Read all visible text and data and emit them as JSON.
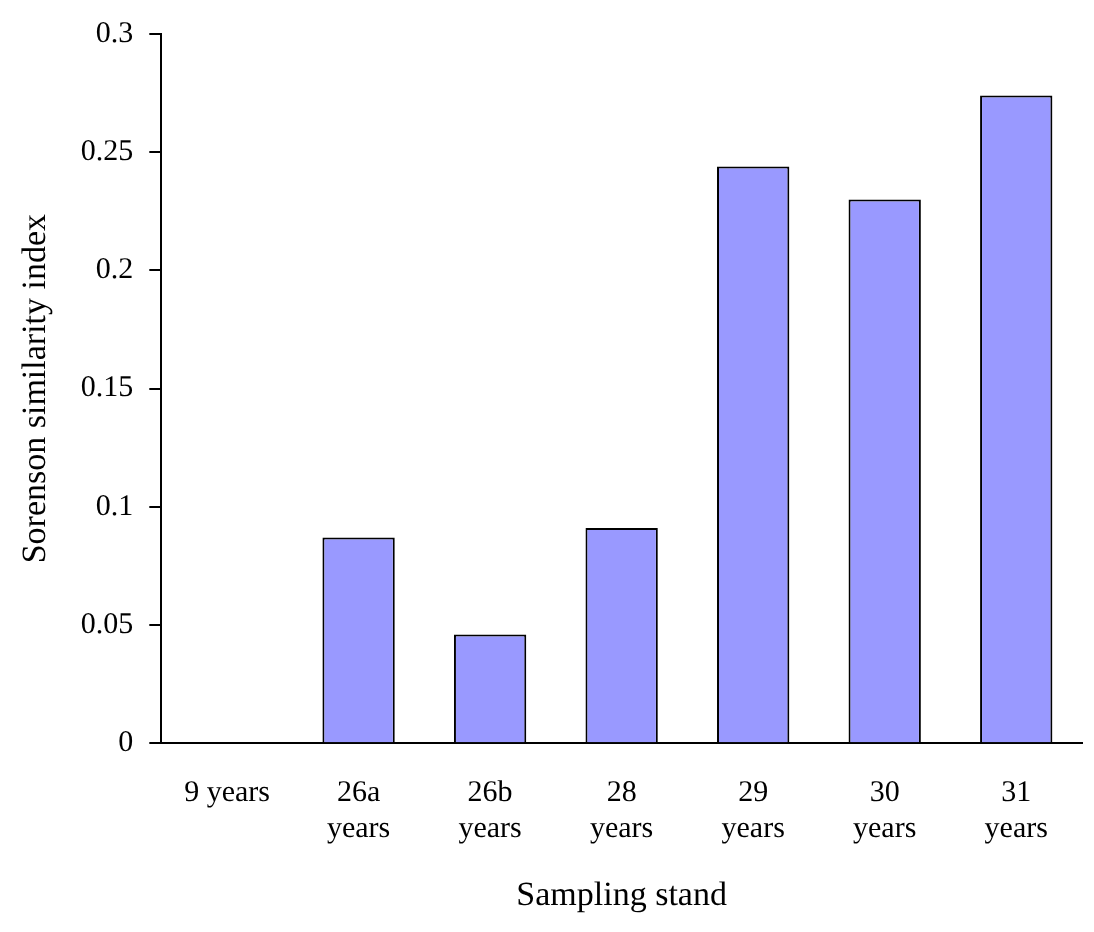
{
  "chart_data": {
    "type": "bar",
    "xlabel": "Sampling stand",
    "ylabel": "Sorenson similarity index",
    "categories": [
      "9 years",
      "26a years",
      "26b years",
      "28 years",
      "29 years",
      "30 years",
      "31 years"
    ],
    "values": [
      0,
      0.087,
      0.046,
      0.091,
      0.244,
      0.23,
      0.274
    ],
    "color": "#9999ff",
    "ylim": [
      0,
      0.3
    ],
    "yticks": [
      0,
      0.05,
      0.1,
      0.15,
      0.2,
      0.25,
      0.3
    ],
    "grid": false
  }
}
